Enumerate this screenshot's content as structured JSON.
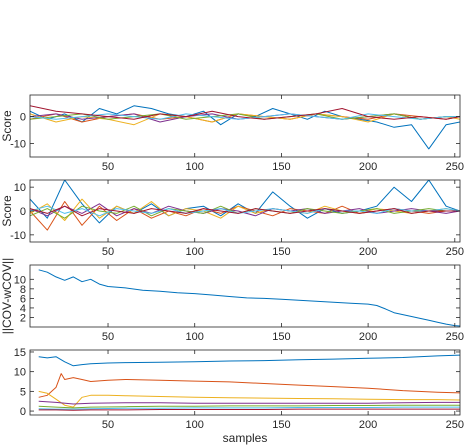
{
  "chart_data": [
    {
      "type": "line",
      "ylabel": "Score",
      "xlabel": "",
      "xlim": [
        5,
        253
      ],
      "ylim": [
        -15,
        8
      ],
      "xticks": [
        50,
        100,
        150,
        200,
        250
      ],
      "yticks": [
        -10,
        0
      ],
      "grid": false,
      "series": [
        {
          "color": "#0072BD",
          "x": [
            5,
            15,
            25,
            35,
            45,
            55,
            65,
            75,
            85,
            95,
            105,
            115,
            125,
            135,
            145,
            155,
            165,
            175,
            185,
            195,
            205,
            215,
            225,
            235,
            245,
            253
          ],
          "y": [
            2,
            -1,
            1,
            -2,
            3,
            1,
            4,
            3,
            1,
            0,
            2,
            -3,
            1,
            0,
            3,
            1,
            -1,
            2,
            0,
            -1,
            -2,
            -4,
            -3,
            -12,
            -3,
            -2
          ]
        },
        {
          "color": "#D95319",
          "x": [
            5,
            20,
            35,
            50,
            65,
            80,
            95,
            110,
            125,
            140,
            155,
            170,
            185,
            200,
            215,
            230,
            245,
            253
          ],
          "y": [
            -1,
            1,
            -2,
            0,
            1,
            -1,
            0,
            -2,
            1,
            0,
            -1,
            1,
            0,
            -1,
            1,
            0,
            -1,
            0
          ]
        },
        {
          "color": "#EDB120",
          "x": [
            5,
            20,
            35,
            50,
            65,
            80,
            95,
            110,
            125,
            140,
            155,
            170,
            185,
            200,
            215,
            230,
            245,
            253
          ],
          "y": [
            1,
            -2,
            0,
            -1,
            -3,
            1,
            0,
            -2,
            1,
            0,
            -1,
            1,
            0,
            -2,
            1,
            -1,
            0,
            -1
          ]
        },
        {
          "color": "#7E2F8E",
          "x": [
            5,
            20,
            35,
            50,
            65,
            80,
            95,
            110,
            125,
            140,
            155,
            170,
            185,
            200,
            215,
            230,
            245,
            253
          ],
          "y": [
            0,
            1,
            -1,
            0,
            1,
            -2,
            0,
            1,
            -1,
            0,
            1,
            0,
            -1,
            0,
            1,
            -1,
            0,
            0
          ]
        },
        {
          "color": "#77AC30",
          "x": [
            5,
            20,
            35,
            50,
            65,
            80,
            95,
            110,
            125,
            140,
            155,
            170,
            185,
            200,
            215,
            230,
            245,
            253
          ],
          "y": [
            -1,
            0,
            1,
            -1,
            0,
            1,
            -1,
            0,
            1,
            -1,
            0,
            1,
            -1,
            0,
            1,
            -1,
            0,
            0
          ]
        },
        {
          "color": "#4DBEEE",
          "x": [
            5,
            20,
            35,
            50,
            65,
            80,
            95,
            110,
            125,
            140,
            155,
            170,
            185,
            200,
            215,
            230,
            245,
            253
          ],
          "y": [
            0,
            -1,
            0,
            1,
            0,
            -1,
            1,
            0,
            -1,
            0,
            1,
            0,
            -1,
            1,
            0,
            -1,
            0,
            0
          ]
        },
        {
          "color": "#A2142F",
          "x": [
            5,
            20,
            35,
            50,
            65,
            80,
            95,
            110,
            125,
            140,
            155,
            170,
            185,
            200,
            215,
            230,
            245,
            253
          ],
          "y": [
            4,
            2,
            1,
            0,
            -1,
            1,
            0,
            2,
            0,
            -1,
            0,
            1,
            3,
            0,
            -1,
            0,
            -1,
            0
          ]
        }
      ]
    },
    {
      "type": "line",
      "ylabel": "Score",
      "xlabel": "",
      "xlim": [
        5,
        253
      ],
      "ylim": [
        -13,
        13
      ],
      "xticks": [
        50,
        100,
        150,
        200,
        250
      ],
      "yticks": [
        -10,
        0,
        10
      ],
      "grid": false,
      "series": [
        {
          "color": "#0072BD",
          "x": [
            5,
            15,
            25,
            35,
            45,
            55,
            65,
            75,
            85,
            95,
            105,
            115,
            125,
            135,
            145,
            155,
            165,
            175,
            185,
            195,
            205,
            215,
            225,
            235,
            245,
            253
          ],
          "y": [
            5,
            -3,
            13,
            3,
            -5,
            2,
            -1,
            3,
            -2,
            1,
            2,
            -2,
            3,
            -1,
            8,
            2,
            -3,
            1,
            -1,
            0,
            2,
            10,
            4,
            13,
            2,
            0
          ]
        },
        {
          "color": "#D95319",
          "x": [
            5,
            15,
            25,
            35,
            45,
            55,
            65,
            75,
            85,
            95,
            105,
            115,
            125,
            135,
            145,
            155,
            165,
            175,
            185,
            195,
            205,
            215,
            225,
            235,
            245,
            253
          ],
          "y": [
            0,
            -8,
            4,
            -6,
            2,
            -4,
            1,
            -3,
            0,
            -2,
            1,
            -1,
            2,
            0,
            -2,
            1,
            0,
            -1,
            2,
            -1,
            0,
            1,
            0,
            -1,
            0,
            0
          ]
        },
        {
          "color": "#EDB120",
          "x": [
            5,
            15,
            25,
            35,
            45,
            55,
            65,
            75,
            85,
            95,
            105,
            115,
            125,
            135,
            145,
            155,
            165,
            175,
            185,
            195,
            205,
            215,
            225,
            235,
            245,
            253
          ],
          "y": [
            -1,
            3,
            -4,
            5,
            -3,
            2,
            -1,
            4,
            -2,
            1,
            0,
            -3,
            2,
            -1,
            1,
            0,
            -1,
            2,
            0,
            -1,
            1,
            0,
            -1,
            0,
            1,
            0
          ]
        },
        {
          "color": "#7E2F8E",
          "x": [
            5,
            15,
            25,
            35,
            45,
            55,
            65,
            75,
            85,
            95,
            105,
            115,
            125,
            135,
            145,
            155,
            165,
            175,
            185,
            195,
            205,
            215,
            225,
            235,
            245,
            253
          ],
          "y": [
            1,
            -2,
            2,
            -1,
            3,
            -2,
            1,
            -1,
            2,
            0,
            -1,
            1,
            0,
            -2,
            1,
            0,
            1,
            -1,
            0,
            1,
            -1,
            0,
            1,
            0,
            -1,
            0
          ]
        },
        {
          "color": "#77AC30",
          "x": [
            5,
            15,
            25,
            35,
            45,
            55,
            65,
            75,
            85,
            95,
            105,
            115,
            125,
            135,
            145,
            155,
            165,
            175,
            185,
            195,
            205,
            215,
            225,
            235,
            245,
            253
          ],
          "y": [
            -2,
            1,
            -3,
            2,
            0,
            -1,
            2,
            -2,
            1,
            0,
            -1,
            2,
            -1,
            1,
            0,
            -1,
            1,
            0,
            -1,
            0,
            1,
            -1,
            0,
            1,
            0,
            0
          ]
        },
        {
          "color": "#4DBEEE",
          "x": [
            5,
            15,
            25,
            35,
            45,
            55,
            65,
            75,
            85,
            95,
            105,
            115,
            125,
            135,
            145,
            155,
            165,
            175,
            185,
            195,
            205,
            215,
            225,
            235,
            245,
            253
          ],
          "y": [
            0,
            2,
            -1,
            1,
            -2,
            1,
            0,
            -1,
            1,
            -1,
            0,
            1,
            -1,
            0,
            1,
            0,
            -1,
            1,
            0,
            0,
            -1,
            1,
            0,
            0,
            1,
            0
          ]
        },
        {
          "color": "#A2142F",
          "x": [
            5,
            15,
            25,
            35,
            45,
            55,
            65,
            75,
            85,
            95,
            105,
            115,
            125,
            135,
            145,
            155,
            165,
            175,
            185,
            195,
            205,
            215,
            225,
            235,
            245,
            253
          ],
          "y": [
            1,
            -1,
            2,
            -2,
            1,
            0,
            -1,
            1,
            0,
            -1,
            1,
            0,
            -1,
            1,
            0,
            -1,
            0,
            1,
            0,
            -1,
            0,
            1,
            -1,
            0,
            0,
            0
          ]
        }
      ]
    },
    {
      "type": "line",
      "ylabel": "||COV-wCOV||",
      "xlabel": "",
      "xlim": [
        5,
        253
      ],
      "ylim": [
        0,
        13
      ],
      "xticks": [
        50,
        100,
        150,
        200,
        250
      ],
      "yticks": [
        2,
        4,
        6,
        8,
        10
      ],
      "grid": false,
      "series": [
        {
          "color": "#0072BD",
          "x": [
            10,
            15,
            20,
            25,
            30,
            35,
            40,
            45,
            50,
            60,
            70,
            80,
            90,
            100,
            110,
            120,
            130,
            140,
            150,
            160,
            170,
            180,
            190,
            200,
            205,
            210,
            215,
            220,
            225,
            230,
            235,
            240,
            245,
            250,
            253
          ],
          "y": [
            12,
            11.5,
            10.5,
            9.8,
            10.5,
            9.5,
            10,
            9,
            8.5,
            8.2,
            7.7,
            7.5,
            7.2,
            7,
            6.7,
            6.4,
            6.1,
            6,
            5.8,
            5.6,
            5.4,
            5.2,
            5,
            4.8,
            4.5,
            3.8,
            3,
            2.6,
            2.2,
            1.8,
            1.4,
            1,
            0.6,
            0.3,
            0.2
          ]
        }
      ]
    },
    {
      "type": "line",
      "ylabel": "",
      "xlabel": "samples",
      "xlim": [
        5,
        253
      ],
      "ylim": [
        -1,
        15.5
      ],
      "xticks": [
        50,
        100,
        150,
        200,
        250
      ],
      "yticks": [
        0,
        5,
        10,
        15
      ],
      "grid": false,
      "series": [
        {
          "color": "#0072BD",
          "x": [
            10,
            15,
            20,
            25,
            30,
            35,
            40,
            50,
            60,
            80,
            100,
            120,
            140,
            160,
            180,
            200,
            220,
            240,
            253
          ],
          "y": [
            13.8,
            13.5,
            13.8,
            12.5,
            11.5,
            11.8,
            12,
            12.2,
            12.3,
            12.4,
            12.5,
            12.7,
            12.8,
            13,
            13.2,
            13.4,
            13.6,
            14,
            14.2
          ]
        },
        {
          "color": "#D95319",
          "x": [
            10,
            15,
            20,
            23,
            25,
            30,
            35,
            40,
            50,
            60,
            80,
            100,
            120,
            140,
            160,
            180,
            200,
            220,
            240,
            253
          ],
          "y": [
            3.5,
            4,
            6,
            9.5,
            8,
            8.5,
            8,
            7.5,
            7.8,
            8,
            7.8,
            7.6,
            7.4,
            7,
            6.6,
            6.2,
            5.8,
            5.2,
            4.8,
            4.6
          ]
        },
        {
          "color": "#EDB120",
          "x": [
            10,
            15,
            20,
            25,
            30,
            35,
            40,
            50,
            60,
            80,
            100,
            120,
            140,
            160,
            180,
            200,
            220,
            240,
            253
          ],
          "y": [
            5,
            4.5,
            3,
            1.5,
            1,
            3.5,
            4,
            4,
            3.9,
            3.7,
            3.5,
            3.4,
            3.3,
            3.2,
            3.1,
            3,
            2.9,
            2.9,
            2.8
          ]
        },
        {
          "color": "#7E2F8E",
          "x": [
            10,
            20,
            30,
            40,
            60,
            80,
            100,
            120,
            140,
            160,
            180,
            200,
            220,
            240,
            253
          ],
          "y": [
            2.5,
            2.2,
            1.8,
            2,
            2.1,
            2.1,
            2,
            2,
            2,
            2,
            2,
            2,
            2.1,
            2.2,
            2.2
          ]
        },
        {
          "color": "#77AC30",
          "x": [
            10,
            20,
            30,
            40,
            60,
            80,
            100,
            120,
            140,
            160,
            180,
            200,
            220,
            240,
            253
          ],
          "y": [
            1.2,
            1,
            0.8,
            1,
            1.1,
            1.2,
            1.2,
            1.3,
            1.3,
            1.3,
            1.4,
            1.4,
            1.5,
            1.5,
            1.5
          ]
        },
        {
          "color": "#4DBEEE",
          "x": [
            10,
            20,
            30,
            40,
            60,
            80,
            100,
            120,
            140,
            160,
            180,
            200,
            220,
            240,
            253
          ],
          "y": [
            0.6,
            0.5,
            0.5,
            0.6,
            0.7,
            0.7,
            0.8,
            0.8,
            0.8,
            0.9,
            0.9,
            0.9,
            1,
            1,
            1
          ]
        },
        {
          "color": "#A2142F",
          "x": [
            10,
            20,
            30,
            40,
            60,
            80,
            100,
            120,
            140,
            160,
            180,
            200,
            220,
            240,
            253
          ],
          "y": [
            0.3,
            0.3,
            0.2,
            0.3,
            0.3,
            0.4,
            0.4,
            0.4,
            0.4,
            0.5,
            0.5,
            0.5,
            0.5,
            0.5,
            0.5
          ]
        }
      ]
    }
  ]
}
